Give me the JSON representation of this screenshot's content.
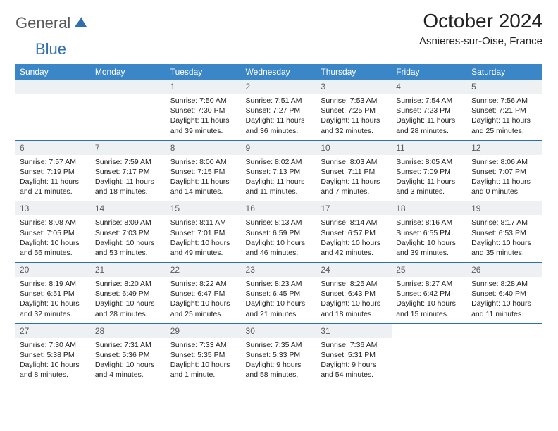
{
  "logo": {
    "textGray": "General",
    "textBlue": "Blue"
  },
  "title": "October 2024",
  "location": "Asnieres-sur-Oise, France",
  "colors": {
    "header_bg": "#3b86c6",
    "header_text": "#ffffff",
    "daynum_bg": "#eef1f3",
    "border": "#2f6fb0",
    "body_text": "#222222",
    "logo_gray": "#5a5a5a",
    "logo_blue": "#2f6fb0"
  },
  "weekdays": [
    "Sunday",
    "Monday",
    "Tuesday",
    "Wednesday",
    "Thursday",
    "Friday",
    "Saturday"
  ],
  "weeks": [
    [
      null,
      null,
      {
        "n": "1",
        "sr": "Sunrise: 7:50 AM",
        "ss": "Sunset: 7:30 PM",
        "dl": "Daylight: 11 hours and 39 minutes."
      },
      {
        "n": "2",
        "sr": "Sunrise: 7:51 AM",
        "ss": "Sunset: 7:27 PM",
        "dl": "Daylight: 11 hours and 36 minutes."
      },
      {
        "n": "3",
        "sr": "Sunrise: 7:53 AM",
        "ss": "Sunset: 7:25 PM",
        "dl": "Daylight: 11 hours and 32 minutes."
      },
      {
        "n": "4",
        "sr": "Sunrise: 7:54 AM",
        "ss": "Sunset: 7:23 PM",
        "dl": "Daylight: 11 hours and 28 minutes."
      },
      {
        "n": "5",
        "sr": "Sunrise: 7:56 AM",
        "ss": "Sunset: 7:21 PM",
        "dl": "Daylight: 11 hours and 25 minutes."
      }
    ],
    [
      {
        "n": "6",
        "sr": "Sunrise: 7:57 AM",
        "ss": "Sunset: 7:19 PM",
        "dl": "Daylight: 11 hours and 21 minutes."
      },
      {
        "n": "7",
        "sr": "Sunrise: 7:59 AM",
        "ss": "Sunset: 7:17 PM",
        "dl": "Daylight: 11 hours and 18 minutes."
      },
      {
        "n": "8",
        "sr": "Sunrise: 8:00 AM",
        "ss": "Sunset: 7:15 PM",
        "dl": "Daylight: 11 hours and 14 minutes."
      },
      {
        "n": "9",
        "sr": "Sunrise: 8:02 AM",
        "ss": "Sunset: 7:13 PM",
        "dl": "Daylight: 11 hours and 11 minutes."
      },
      {
        "n": "10",
        "sr": "Sunrise: 8:03 AM",
        "ss": "Sunset: 7:11 PM",
        "dl": "Daylight: 11 hours and 7 minutes."
      },
      {
        "n": "11",
        "sr": "Sunrise: 8:05 AM",
        "ss": "Sunset: 7:09 PM",
        "dl": "Daylight: 11 hours and 3 minutes."
      },
      {
        "n": "12",
        "sr": "Sunrise: 8:06 AM",
        "ss": "Sunset: 7:07 PM",
        "dl": "Daylight: 11 hours and 0 minutes."
      }
    ],
    [
      {
        "n": "13",
        "sr": "Sunrise: 8:08 AM",
        "ss": "Sunset: 7:05 PM",
        "dl": "Daylight: 10 hours and 56 minutes."
      },
      {
        "n": "14",
        "sr": "Sunrise: 8:09 AM",
        "ss": "Sunset: 7:03 PM",
        "dl": "Daylight: 10 hours and 53 minutes."
      },
      {
        "n": "15",
        "sr": "Sunrise: 8:11 AM",
        "ss": "Sunset: 7:01 PM",
        "dl": "Daylight: 10 hours and 49 minutes."
      },
      {
        "n": "16",
        "sr": "Sunrise: 8:13 AM",
        "ss": "Sunset: 6:59 PM",
        "dl": "Daylight: 10 hours and 46 minutes."
      },
      {
        "n": "17",
        "sr": "Sunrise: 8:14 AM",
        "ss": "Sunset: 6:57 PM",
        "dl": "Daylight: 10 hours and 42 minutes."
      },
      {
        "n": "18",
        "sr": "Sunrise: 8:16 AM",
        "ss": "Sunset: 6:55 PM",
        "dl": "Daylight: 10 hours and 39 minutes."
      },
      {
        "n": "19",
        "sr": "Sunrise: 8:17 AM",
        "ss": "Sunset: 6:53 PM",
        "dl": "Daylight: 10 hours and 35 minutes."
      }
    ],
    [
      {
        "n": "20",
        "sr": "Sunrise: 8:19 AM",
        "ss": "Sunset: 6:51 PM",
        "dl": "Daylight: 10 hours and 32 minutes."
      },
      {
        "n": "21",
        "sr": "Sunrise: 8:20 AM",
        "ss": "Sunset: 6:49 PM",
        "dl": "Daylight: 10 hours and 28 minutes."
      },
      {
        "n": "22",
        "sr": "Sunrise: 8:22 AM",
        "ss": "Sunset: 6:47 PM",
        "dl": "Daylight: 10 hours and 25 minutes."
      },
      {
        "n": "23",
        "sr": "Sunrise: 8:23 AM",
        "ss": "Sunset: 6:45 PM",
        "dl": "Daylight: 10 hours and 21 minutes."
      },
      {
        "n": "24",
        "sr": "Sunrise: 8:25 AM",
        "ss": "Sunset: 6:43 PM",
        "dl": "Daylight: 10 hours and 18 minutes."
      },
      {
        "n": "25",
        "sr": "Sunrise: 8:27 AM",
        "ss": "Sunset: 6:42 PM",
        "dl": "Daylight: 10 hours and 15 minutes."
      },
      {
        "n": "26",
        "sr": "Sunrise: 8:28 AM",
        "ss": "Sunset: 6:40 PM",
        "dl": "Daylight: 10 hours and 11 minutes."
      }
    ],
    [
      {
        "n": "27",
        "sr": "Sunrise: 7:30 AM",
        "ss": "Sunset: 5:38 PM",
        "dl": "Daylight: 10 hours and 8 minutes."
      },
      {
        "n": "28",
        "sr": "Sunrise: 7:31 AM",
        "ss": "Sunset: 5:36 PM",
        "dl": "Daylight: 10 hours and 4 minutes."
      },
      {
        "n": "29",
        "sr": "Sunrise: 7:33 AM",
        "ss": "Sunset: 5:35 PM",
        "dl": "Daylight: 10 hours and 1 minute."
      },
      {
        "n": "30",
        "sr": "Sunrise: 7:35 AM",
        "ss": "Sunset: 5:33 PM",
        "dl": "Daylight: 9 hours and 58 minutes."
      },
      {
        "n": "31",
        "sr": "Sunrise: 7:36 AM",
        "ss": "Sunset: 5:31 PM",
        "dl": "Daylight: 9 hours and 54 minutes."
      },
      null,
      null
    ]
  ]
}
